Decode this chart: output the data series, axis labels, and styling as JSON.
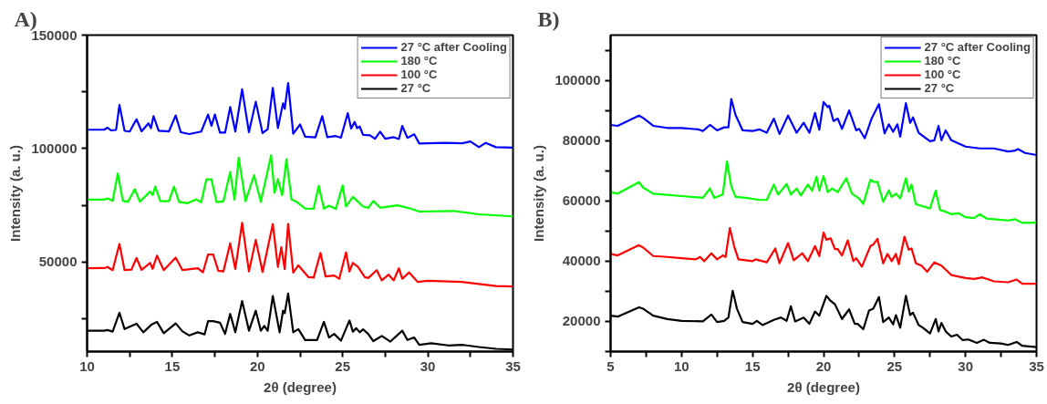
{
  "chart_data": [
    {
      "type": "line",
      "title": "A)",
      "xlabel": "2θ (degree)",
      "ylabel": "Intensity (a. u.)",
      "xlim": [
        10,
        35
      ],
      "ylim": [
        10500,
        150000
      ],
      "xticks": [
        10,
        {
          "value": 12.5,
          "label": null
        },
        15,
        {
          "value": 17.5,
          "label": null
        },
        20,
        {
          "value": 22.5,
          "label": null
        },
        25,
        {
          "value": 27.5,
          "label": null
        },
        30,
        {
          "value": 32.5,
          "label": null
        },
        35
      ],
      "yticks": [
        {
          "value": 25000,
          "label": null
        },
        50000,
        {
          "value": 75000,
          "label": null
        },
        100000,
        {
          "value": 125000,
          "label": null
        },
        150000
      ],
      "grid": false,
      "legend": "top right",
      "series": [
        {
          "name": "27 °C after Cooling",
          "color": "#0000ff",
          "x": [
            10,
            11.0,
            11.2,
            11.4,
            11.7,
            11.9,
            12.2,
            12.5,
            12.9,
            13.2,
            13.6,
            13.75,
            13.9,
            14.2,
            14.8,
            15.2,
            15.5,
            16.0,
            16.7,
            17.1,
            17.3,
            17.5,
            17.8,
            18.1,
            18.4,
            18.7,
            19.1,
            19.5,
            19.9,
            20.3,
            20.6,
            20.9,
            21.2,
            21.5,
            21.6,
            21.8,
            22.1,
            22.5,
            22.8,
            23.4,
            23.8,
            24.1,
            24.6,
            24.9,
            25.3,
            25.5,
            25.7,
            25.85,
            26.0,
            26.2,
            26.6,
            26.9,
            27.2,
            27.5,
            28.0,
            28.3,
            28.5,
            28.8,
            29.2,
            29.5,
            31.0,
            32.0,
            32.5,
            33.0,
            33.4,
            34.0,
            35
          ],
          "values": [
            108300,
            108300,
            109200,
            108000,
            108200,
            119200,
            107800,
            107500,
            112900,
            107600,
            111100,
            109000,
            114300,
            107800,
            107500,
            114600,
            107200,
            106400,
            107500,
            115000,
            110000,
            115000,
            107000,
            107000,
            118300,
            107500,
            126100,
            107200,
            120600,
            106800,
            108500,
            126700,
            109000,
            119900,
            117500,
            128900,
            106500,
            110600,
            105200,
            104900,
            114300,
            105000,
            105500,
            104800,
            115600,
            108800,
            111700,
            109000,
            109700,
            106000,
            105800,
            104300,
            107400,
            104300,
            105000,
            104200,
            110000,
            104700,
            106300,
            102200,
            102500,
            102300,
            103100,
            100600,
            102500,
            100600,
            100400
          ]
        },
        {
          "name": "180 °C",
          "color": "#00ff00",
          "x": [
            10,
            11.0,
            11.2,
            11.5,
            11.8,
            12.1,
            12.4,
            12.8,
            13.1,
            13.7,
            13.85,
            14.0,
            14.3,
            14.8,
            15.1,
            15.4,
            15.9,
            16.4,
            16.7,
            17.0,
            17.3,
            17.6,
            18.0,
            18.4,
            18.65,
            18.9,
            19.3,
            19.8,
            20.2,
            20.8,
            21.0,
            21.2,
            21.45,
            21.7,
            22.0,
            22.3,
            22.8,
            23.3,
            23.6,
            23.9,
            24.2,
            24.6,
            25.0,
            25.2,
            25.6,
            26.2,
            26.5,
            26.8,
            27.2,
            28.2,
            29.0,
            29.5,
            31.5,
            33.0,
            35
          ],
          "values": [
            77500,
            77500,
            78000,
            76900,
            89000,
            77000,
            76500,
            82100,
            76600,
            81000,
            79500,
            83200,
            76800,
            76800,
            83200,
            76500,
            75900,
            77500,
            76300,
            86400,
            86400,
            76400,
            76700,
            89700,
            77500,
            96000,
            76800,
            88200,
            76500,
            97000,
            80500,
            86500,
            79500,
            95300,
            77500,
            76500,
            73600,
            73500,
            83600,
            73500,
            74800,
            73400,
            83700,
            74500,
            78700,
            74400,
            73800,
            76900,
            73900,
            75000,
            73500,
            72200,
            72500,
            71000,
            70100
          ]
        },
        {
          "name": "100 °C",
          "color": "#ff0000",
          "x": [
            10,
            11.0,
            11.2,
            11.5,
            11.9,
            12.2,
            12.6,
            12.9,
            13.2,
            13.7,
            13.85,
            14.1,
            14.5,
            15.2,
            15.6,
            16.5,
            16.8,
            17.1,
            17.4,
            17.7,
            18.0,
            18.4,
            18.7,
            19.1,
            19.5,
            19.9,
            20.3,
            20.9,
            21.2,
            21.4,
            21.6,
            21.8,
            22.1,
            22.4,
            23.0,
            23.3,
            23.7,
            24.0,
            24.5,
            24.8,
            25.2,
            25.4,
            25.6,
            25.9,
            26.3,
            26.5,
            27.0,
            27.3,
            27.7,
            28.0,
            28.3,
            28.5,
            28.9,
            29.4,
            30.0,
            32.0,
            34.0,
            35
          ],
          "values": [
            47200,
            47300,
            47800,
            46400,
            57900,
            46400,
            46600,
            51700,
            46500,
            49600,
            47000,
            52800,
            46400,
            51900,
            46400,
            47200,
            45400,
            53300,
            53300,
            46100,
            45800,
            58200,
            46900,
            67200,
            45800,
            59700,
            45600,
            66700,
            47800,
            56500,
            46900,
            66700,
            45300,
            48500,
            43300,
            43100,
            54000,
            43600,
            44000,
            42600,
            54200,
            45800,
            49600,
            47800,
            43300,
            42900,
            46400,
            41900,
            44400,
            41900,
            47200,
            42600,
            45400,
            41200,
            41700,
            41200,
            39400,
            39200
          ]
        },
        {
          "name": "27 °C",
          "color": "#000000",
          "x": [
            10,
            11.0,
            11.2,
            11.5,
            11.9,
            12.2,
            12.9,
            13.3,
            13.8,
            14.1,
            14.5,
            15.2,
            15.6,
            16.0,
            16.5,
            16.9,
            17.1,
            17.4,
            17.8,
            18.1,
            18.4,
            18.7,
            19.1,
            19.5,
            19.9,
            20.2,
            20.4,
            20.6,
            20.9,
            21.3,
            21.5,
            21.6,
            21.8,
            22.1,
            22.4,
            22.8,
            23.5,
            23.9,
            24.2,
            24.5,
            24.9,
            25.4,
            25.6,
            25.8,
            26.0,
            26.2,
            26.5,
            26.8,
            27.3,
            27.8,
            28.5,
            28.8,
            29.2,
            29.5,
            30.2,
            31.2,
            32.0,
            33.0,
            34.0,
            35
          ],
          "values": [
            19700,
            19700,
            20000,
            19300,
            27600,
            20400,
            22800,
            19000,
            22500,
            23600,
            18600,
            22900,
            19400,
            17600,
            19000,
            18100,
            23900,
            23900,
            23200,
            18300,
            27100,
            19000,
            32800,
            19700,
            28500,
            19700,
            21800,
            19700,
            35000,
            19000,
            28500,
            27400,
            36100,
            19000,
            20400,
            15600,
            15600,
            23600,
            16700,
            18300,
            15300,
            24200,
            19300,
            20800,
            19000,
            20300,
            18300,
            15100,
            17400,
            14900,
            19700,
            15600,
            16700,
            13500,
            14200,
            13200,
            13500,
            12500,
            11700,
            11400
          ]
        }
      ]
    },
    {
      "type": "line",
      "title": "B)",
      "xlabel": "2θ (degree)",
      "ylabel": "Intensity (a. u.)",
      "xlim": [
        5,
        35
      ],
      "ylim": [
        10000,
        115000
      ],
      "xticks": [
        5,
        {
          "value": 7.5,
          "label": null
        },
        10,
        {
          "value": 12.5,
          "label": null
        },
        15,
        {
          "value": 17.5,
          "label": null
        },
        20,
        {
          "value": 22.5,
          "label": null
        },
        25,
        {
          "value": 27.5,
          "label": null
        },
        30,
        {
          "value": 32.5,
          "label": null
        },
        35
      ],
      "yticks": [
        {
          "value": 10000,
          "label": null
        },
        20000,
        {
          "value": 30000,
          "label": null
        },
        40000,
        {
          "value": 50000,
          "label": null
        },
        60000,
        {
          "value": 70000,
          "label": null
        },
        80000,
        {
          "value": 90000,
          "label": null
        },
        100000,
        {
          "value": 110000,
          "label": null
        }
      ],
      "grid": false,
      "legend": "top right",
      "series": [
        {
          "name": "27 °C after Cooling",
          "color": "#0000ff",
          "x": [
            5.0,
            5.5,
            7.0,
            7.3,
            8.0,
            9.0,
            10.0,
            11.2,
            11.5,
            12.0,
            12.5,
            13.0,
            13.3,
            13.5,
            13.8,
            14.3,
            15.0,
            15.5,
            16.0,
            16.5,
            16.9,
            17.5,
            18.1,
            18.6,
            19.0,
            19.4,
            19.7,
            20.0,
            20.3,
            20.4,
            20.7,
            21.0,
            21.3,
            21.8,
            22.3,
            22.5,
            22.9,
            23.4,
            23.9,
            24.3,
            24.6,
            24.9,
            25.2,
            25.4,
            25.8,
            26.1,
            26.3,
            26.7,
            27.0,
            27.5,
            27.8,
            28.1,
            28.3,
            28.6,
            29.0,
            29.5,
            30.0,
            31.0,
            32.0,
            33.0,
            33.5,
            33.7,
            34.2,
            35
          ],
          "values": [
            85200,
            84900,
            88300,
            87500,
            84900,
            84200,
            84200,
            83700,
            83200,
            85200,
            83400,
            84400,
            84400,
            93800,
            88500,
            83400,
            83200,
            83700,
            82600,
            87300,
            82200,
            88300,
            82600,
            85900,
            82600,
            89200,
            83600,
            92800,
            91100,
            91600,
            86500,
            87300,
            83900,
            90000,
            83400,
            83900,
            80800,
            87500,
            92100,
            82400,
            85400,
            82900,
            85400,
            81300,
            92400,
            85900,
            87700,
            82600,
            81500,
            79800,
            80100,
            84900,
            80100,
            83400,
            80100,
            79100,
            78000,
            77400,
            77400,
            76400,
            76700,
            77200,
            75900,
            75200
          ]
        },
        {
          "name": "180 °C",
          "color": "#00ff00",
          "x": [
            5.0,
            5.5,
            7.0,
            7.3,
            8.0,
            10,
            11.5,
            12.0,
            12.3,
            12.9,
            13.2,
            13.5,
            13.8,
            14.5,
            15.5,
            16.0,
            16.5,
            16.8,
            17.4,
            17.7,
            18.1,
            18.4,
            18.9,
            19.2,
            19.5,
            19.7,
            20.0,
            20.3,
            20.6,
            21.0,
            21.6,
            22.0,
            22.5,
            22.8,
            23.3,
            23.6,
            23.8,
            24.2,
            24.6,
            24.8,
            25.1,
            25.4,
            25.8,
            26.0,
            26.2,
            26.5,
            27.0,
            27.5,
            27.9,
            28.2,
            28.6,
            29.0,
            29.5,
            30.0,
            30.6,
            31.0,
            31.5,
            32.0,
            33.0,
            33.5,
            34.0,
            35
          ],
          "values": [
            62900,
            62400,
            66200,
            64400,
            62400,
            61600,
            61000,
            64100,
            61000,
            62100,
            73100,
            64900,
            61300,
            61000,
            60300,
            60300,
            65400,
            62100,
            65600,
            62100,
            64100,
            61800,
            65400,
            63400,
            68000,
            63400,
            68200,
            62900,
            64100,
            62900,
            67500,
            62400,
            60800,
            59000,
            67000,
            66200,
            66300,
            59700,
            63500,
            61300,
            62400,
            60800,
            67500,
            63100,
            65400,
            58900,
            58200,
            57500,
            63400,
            57000,
            56400,
            55600,
            55900,
            54600,
            54300,
            55600,
            54100,
            53900,
            53500,
            53900,
            52700,
            52800
          ]
        },
        {
          "name": "100 °C",
          "color": "#ff0000",
          "x": [
            5.0,
            5.5,
            7.0,
            7.3,
            8.0,
            9.0,
            10,
            11.0,
            11.3,
            11.6,
            12.1,
            12.5,
            12.9,
            13.1,
            13.4,
            13.7,
            14.0,
            15.0,
            15.2,
            16.0,
            16.6,
            16.9,
            17.5,
            17.9,
            18.5,
            18.9,
            19.4,
            19.7,
            20.0,
            20.2,
            20.5,
            20.8,
            21.0,
            21.3,
            21.7,
            22.1,
            22.3,
            22.7,
            23.3,
            23.5,
            23.8,
            24.2,
            24.5,
            24.8,
            25.1,
            25.3,
            25.7,
            26.0,
            26.2,
            26.5,
            26.9,
            27.3,
            27.8,
            28.3,
            29.0,
            30.0,
            30.6,
            31.2,
            32,
            33.0,
            33.6,
            34.0,
            35
          ],
          "values": [
            42400,
            41900,
            45300,
            44500,
            41700,
            41400,
            41000,
            40600,
            41400,
            40000,
            42600,
            40600,
            41900,
            41400,
            51000,
            45000,
            40600,
            40000,
            40600,
            39600,
            44200,
            39300,
            46000,
            40300,
            42600,
            40000,
            45000,
            41700,
            49500,
            47100,
            47600,
            44000,
            44000,
            41900,
            46900,
            40000,
            41000,
            38200,
            45000,
            45500,
            47400,
            39300,
            42400,
            40000,
            42400,
            39000,
            48100,
            43800,
            44200,
            39300,
            38500,
            36500,
            39600,
            38500,
            35400,
            34400,
            34100,
            34600,
            33300,
            33000,
            33900,
            32500,
            32500
          ]
        },
        {
          "name": "27 °C",
          "color": "#000000",
          "x": [
            5.0,
            5.5,
            7.0,
            7.3,
            8.0,
            9.0,
            10.0,
            11.5,
            12.1,
            12.5,
            13.0,
            13.3,
            13.6,
            13.9,
            14.3,
            15.0,
            15.3,
            15.7,
            16.5,
            17.0,
            17.4,
            17.7,
            18.0,
            18.6,
            19.0,
            19.4,
            19.7,
            20.2,
            20.5,
            20.8,
            21.3,
            21.5,
            21.8,
            22.2,
            22.4,
            22.8,
            23.2,
            23.5,
            23.9,
            24.2,
            24.6,
            24.9,
            25.1,
            25.4,
            25.8,
            26.1,
            26.3,
            26.7,
            27.0,
            27.5,
            27.9,
            28.1,
            28.3,
            28.6,
            29.0,
            29.4,
            29.8,
            30.2,
            30.8,
            31.3,
            31.7,
            32.5,
            33.0,
            33.6,
            34.0,
            35
          ],
          "values": [
            21900,
            21600,
            24700,
            24200,
            21900,
            20800,
            20200,
            20000,
            22300,
            19800,
            20200,
            21300,
            30200,
            24200,
            19800,
            19200,
            20200,
            18800,
            20500,
            21300,
            20200,
            25000,
            20000,
            21300,
            19200,
            23300,
            21900,
            28500,
            26800,
            25700,
            20800,
            22100,
            24000,
            19200,
            19200,
            17400,
            23600,
            24200,
            28100,
            19800,
            21300,
            19000,
            22100,
            17900,
            28500,
            22100,
            22900,
            18800,
            17900,
            16000,
            20800,
            16700,
            19500,
            16700,
            15000,
            15600,
            13800,
            14000,
            12900,
            13900,
            12900,
            12700,
            12200,
            13200,
            11900,
            11500
          ]
        }
      ]
    }
  ]
}
